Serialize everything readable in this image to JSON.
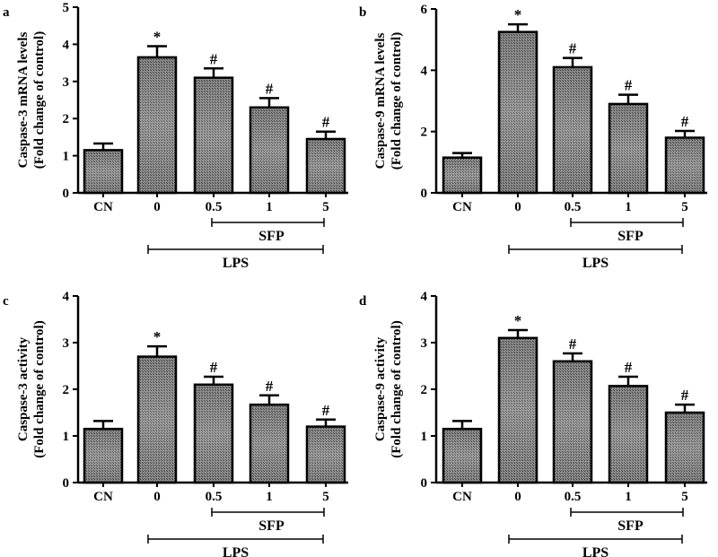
{
  "figure": {
    "group_labels": {
      "inner": "SFP",
      "outer": "LPS"
    }
  },
  "chart_data": [
    {
      "type": "bar",
      "panel_label": "a",
      "ylabel_line1": "Caspase-3 mRNA levels",
      "ylabel_line2": "(Fold change of control)",
      "categories": [
        "CN",
        "0",
        "0.5",
        "1",
        "5"
      ],
      "values": [
        1.15,
        3.65,
        3.1,
        2.3,
        1.45
      ],
      "errors": [
        0.18,
        0.3,
        0.25,
        0.25,
        0.2
      ],
      "annotations": [
        "",
        "*",
        "#",
        "#",
        "#"
      ],
      "ylim": [
        0,
        5
      ],
      "yticks": [
        0,
        1,
        2,
        3,
        4,
        5
      ],
      "bar_color": "#6a6a6a"
    },
    {
      "type": "bar",
      "panel_label": "b",
      "ylabel_line1": "Caspase-9 mRNA levels",
      "ylabel_line2": "(Fold change of control)",
      "categories": [
        "CN",
        "0",
        "0.5",
        "1",
        "5"
      ],
      "values": [
        1.15,
        5.25,
        4.1,
        2.9,
        1.8
      ],
      "errors": [
        0.15,
        0.25,
        0.3,
        0.3,
        0.22
      ],
      "annotations": [
        "",
        "*",
        "#",
        "#",
        "#"
      ],
      "ylim": [
        0,
        6
      ],
      "yticks": [
        0,
        2,
        4,
        6
      ],
      "bar_color": "#6a6a6a"
    },
    {
      "type": "bar",
      "panel_label": "c",
      "ylabel_line1": "Caspase-3 activity",
      "ylabel_line2": "(Fold change of control)",
      "categories": [
        "CN",
        "0",
        "0.5",
        "1",
        "5"
      ],
      "values": [
        1.15,
        2.7,
        2.1,
        1.67,
        1.2
      ],
      "errors": [
        0.17,
        0.22,
        0.17,
        0.2,
        0.15
      ],
      "annotations": [
        "",
        "*",
        "#",
        "#",
        "#"
      ],
      "ylim": [
        0,
        4
      ],
      "yticks": [
        0,
        1,
        2,
        3,
        4
      ],
      "bar_color": "#6a6a6a"
    },
    {
      "type": "bar",
      "panel_label": "d",
      "ylabel_line1": "Caspase-9 activity",
      "ylabel_line2": "(Fold change of control)",
      "categories": [
        "CN",
        "0",
        "0.5",
        "1",
        "5"
      ],
      "values": [
        1.15,
        3.1,
        2.6,
        2.07,
        1.5
      ],
      "errors": [
        0.17,
        0.17,
        0.17,
        0.2,
        0.17
      ],
      "annotations": [
        "",
        "*",
        "#",
        "#",
        "#"
      ],
      "ylim": [
        0,
        4
      ],
      "yticks": [
        0,
        1,
        2,
        3,
        4
      ],
      "bar_color": "#6a6a6a"
    }
  ]
}
